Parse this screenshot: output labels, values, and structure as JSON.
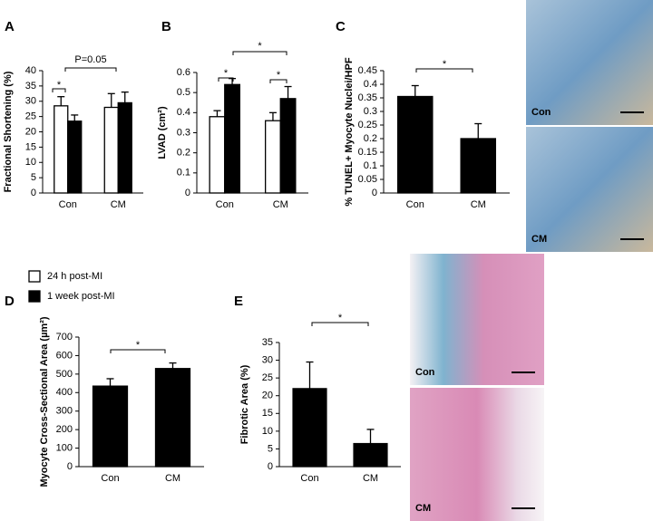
{
  "chart_data": [
    {
      "type": "bar",
      "panel": "A",
      "y_label": "Fractional Shortening (%)",
      "categories": [
        "Con",
        "CM"
      ],
      "series": [
        {
          "name": "24 h post-MI",
          "color": "#ffffff",
          "values": [
            28.5,
            28
          ],
          "errors": [
            3,
            4.5
          ]
        },
        {
          "name": "1 week post-MI",
          "color": "#000000",
          "values": [
            23.5,
            29.5
          ],
          "errors": [
            2,
            3.5
          ]
        }
      ],
      "ylim": [
        0,
        40
      ],
      "yticks": [
        0,
        5,
        10,
        15,
        20,
        25,
        30,
        35,
        40
      ],
      "legend": "bottom",
      "annotations": [
        "*",
        "P=0.05"
      ]
    },
    {
      "type": "bar",
      "panel": "B",
      "y_label": "LVAD (cm²)",
      "categories": [
        "Con",
        "CM"
      ],
      "series": [
        {
          "color": "#ffffff",
          "values": [
            0.38,
            0.36
          ],
          "errors": [
            0.03,
            0.04
          ]
        },
        {
          "color": "#000000",
          "values": [
            0.54,
            0.47
          ],
          "errors": [
            0.03,
            0.06
          ]
        }
      ],
      "ylim": [
        0,
        0.6
      ],
      "yticks": [
        0,
        0.1,
        0.2,
        0.3,
        0.4,
        0.5,
        0.6
      ],
      "annotations": [
        "*",
        "*",
        "*"
      ]
    },
    {
      "type": "bar",
      "panel": "C",
      "y_label": "% TUNEL+ Myocyte Nuclei/HPF",
      "categories": [
        "Con",
        "CM"
      ],
      "series": [
        {
          "color": "#000000",
          "values": [
            0.355,
            0.2
          ],
          "errors": [
            0.04,
            0.055
          ]
        }
      ],
      "ylim": [
        0,
        0.45
      ],
      "yticks": [
        0,
        0.05,
        0.1,
        0.15,
        0.2,
        0.25,
        0.3,
        0.35,
        0.4,
        0.45
      ],
      "annotations": [
        "*"
      ]
    },
    {
      "type": "bar",
      "panel": "D",
      "y_label": "Myocyte Cross-Sectional Area (µm²)",
      "categories": [
        "Con",
        "CM"
      ],
      "series": [
        {
          "color": "#000000",
          "values": [
            435,
            530
          ],
          "errors": [
            40,
            30
          ]
        }
      ],
      "ylim": [
        0,
        700
      ],
      "yticks": [
        0,
        100,
        200,
        300,
        400,
        500,
        600,
        700
      ],
      "annotations": [
        "*"
      ]
    },
    {
      "type": "bar",
      "panel": "E",
      "y_label": "Fibrotic Area (%)",
      "categories": [
        "Con",
        "CM"
      ],
      "series": [
        {
          "color": "#000000",
          "values": [
            22,
            6.5
          ],
          "errors": [
            7.5,
            4
          ]
        }
      ],
      "ylim": [
        0,
        35
      ],
      "yticks": [
        0,
        5,
        10,
        15,
        20,
        25,
        30,
        35
      ],
      "annotations": [
        "*"
      ]
    }
  ],
  "micrographs": [
    {
      "label": "Con"
    },
    {
      "label": "CM"
    },
    {
      "label": "Con"
    },
    {
      "label": "CM"
    }
  ]
}
